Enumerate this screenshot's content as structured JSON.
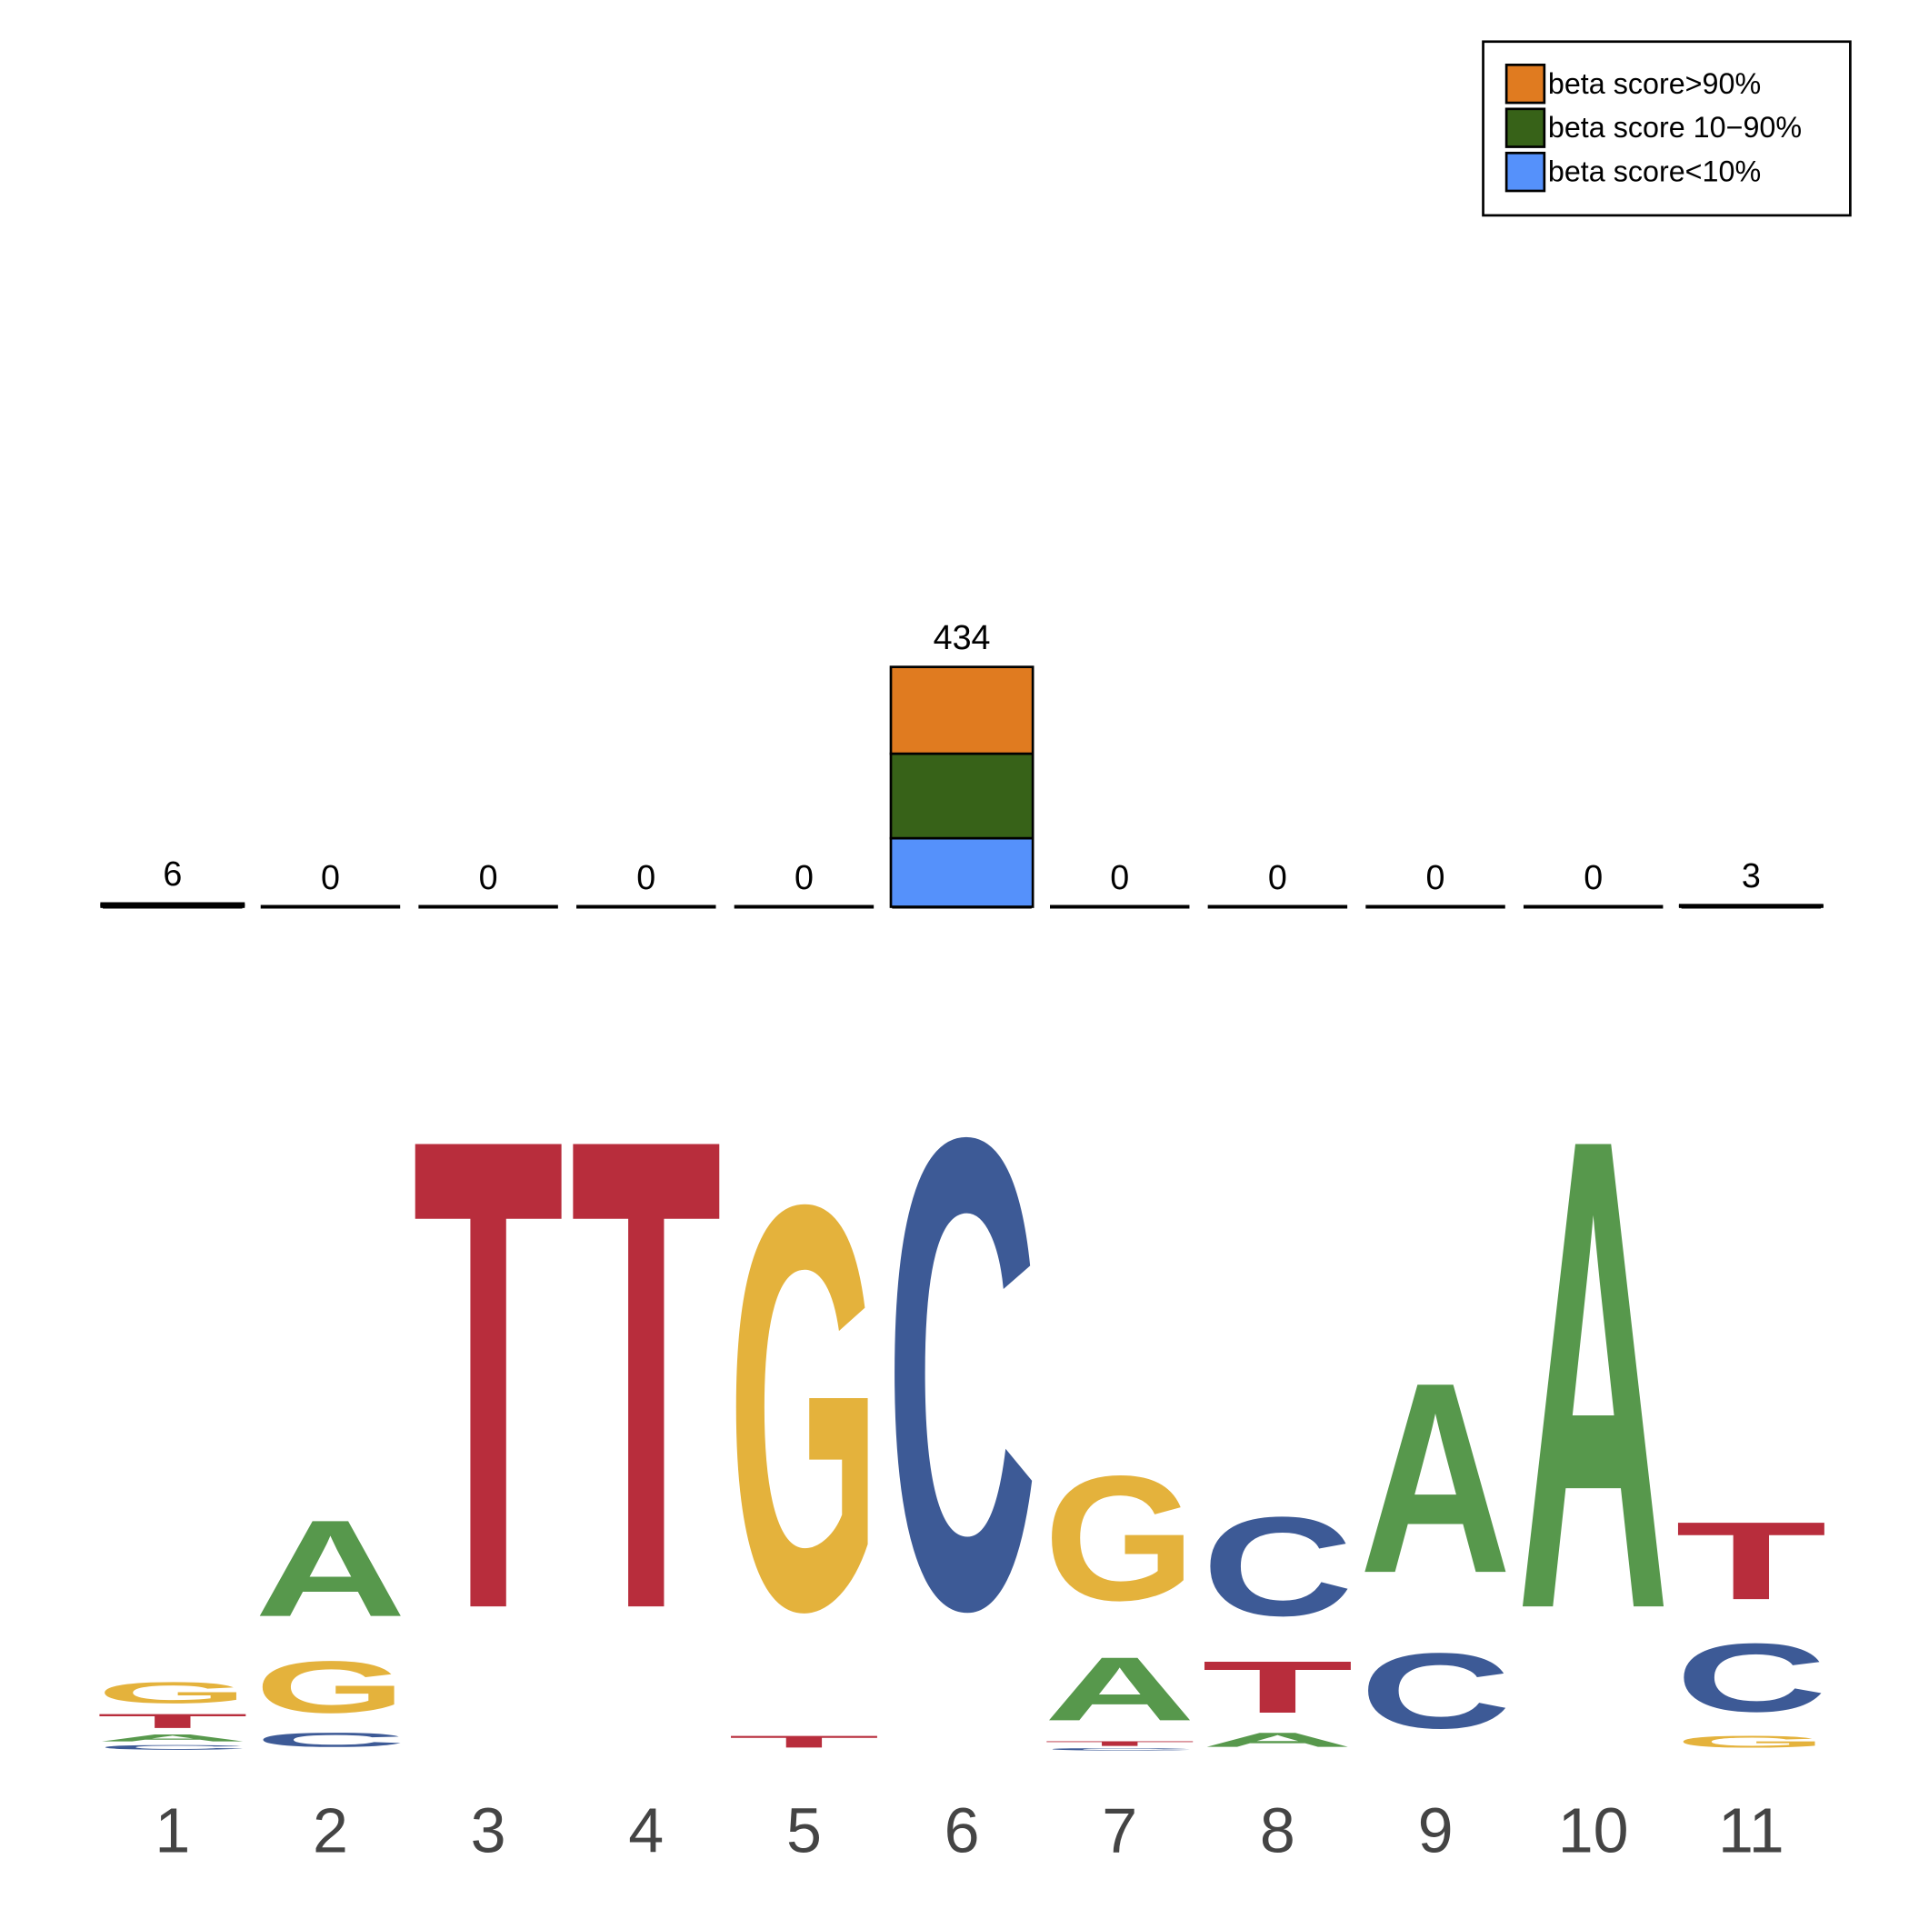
{
  "chart_data": [
    {
      "type": "stacked-bar",
      "categories": [
        1,
        2,
        3,
        4,
        5,
        6,
        7,
        8,
        9,
        10,
        11
      ],
      "totals": [
        6,
        0,
        0,
        0,
        0,
        434,
        0,
        0,
        0,
        0,
        3
      ],
      "series": [
        {
          "name": "beta score>90%",
          "color": "#e07b20",
          "values": [
            2,
            0,
            0,
            0,
            0,
            157,
            0,
            0,
            0,
            0,
            1
          ]
        },
        {
          "name": "beta score 10−90%",
          "color": "#376218",
          "values": [
            2,
            0,
            0,
            0,
            0,
            153,
            0,
            0,
            0,
            0,
            1
          ]
        },
        {
          "name": "beta score<10%",
          "color": "#5591fb",
          "values": [
            2,
            0,
            0,
            0,
            0,
            124,
            0,
            0,
            0,
            0,
            1
          ]
        }
      ],
      "legend": "top-right"
    },
    {
      "type": "logo",
      "categories": [
        1,
        2,
        3,
        4,
        5,
        6,
        7,
        8,
        9,
        10,
        11
      ],
      "letter_colors": {
        "A": "#57984c",
        "C": "#3d5a96",
        "G": "#e4b23c",
        "T": "#b82d3c"
      },
      "letters": [
        [
          {
            "base": "G",
            "height": 0.09
          },
          {
            "base": "T",
            "height": 0.06
          },
          {
            "base": "A",
            "height": 0.03
          },
          {
            "base": "C",
            "height": 0.02
          }
        ],
        [
          {
            "base": "A",
            "height": 0.41
          },
          {
            "base": "G",
            "height": 0.22
          },
          {
            "base": "C",
            "height": 0.06
          }
        ],
        [
          {
            "base": "T",
            "height": 2.0
          }
        ],
        [
          {
            "base": "T",
            "height": 2.0
          }
        ],
        [
          {
            "base": "G",
            "height": 1.72
          },
          {
            "base": "T",
            "height": 0.05
          }
        ],
        [
          {
            "base": "C",
            "height": 2.0
          }
        ],
        [
          {
            "base": "G",
            "height": 0.53
          },
          {
            "base": "A",
            "height": 0.27
          },
          {
            "base": "T",
            "height": 0.02
          },
          {
            "base": "C",
            "height": 0.01
          }
        ],
        [
          {
            "base": "C",
            "height": 0.42
          },
          {
            "base": "T",
            "height": 0.22
          },
          {
            "base": "A",
            "height": 0.06
          }
        ],
        [
          {
            "base": "A",
            "height": 0.81
          },
          {
            "base": "C",
            "height": 0.32
          }
        ],
        [
          {
            "base": "A",
            "height": 2.0
          }
        ],
        [
          {
            "base": "T",
            "height": 0.33
          },
          {
            "base": "C",
            "height": 0.29
          },
          {
            "base": "G",
            "height": 0.05
          }
        ]
      ]
    }
  ]
}
